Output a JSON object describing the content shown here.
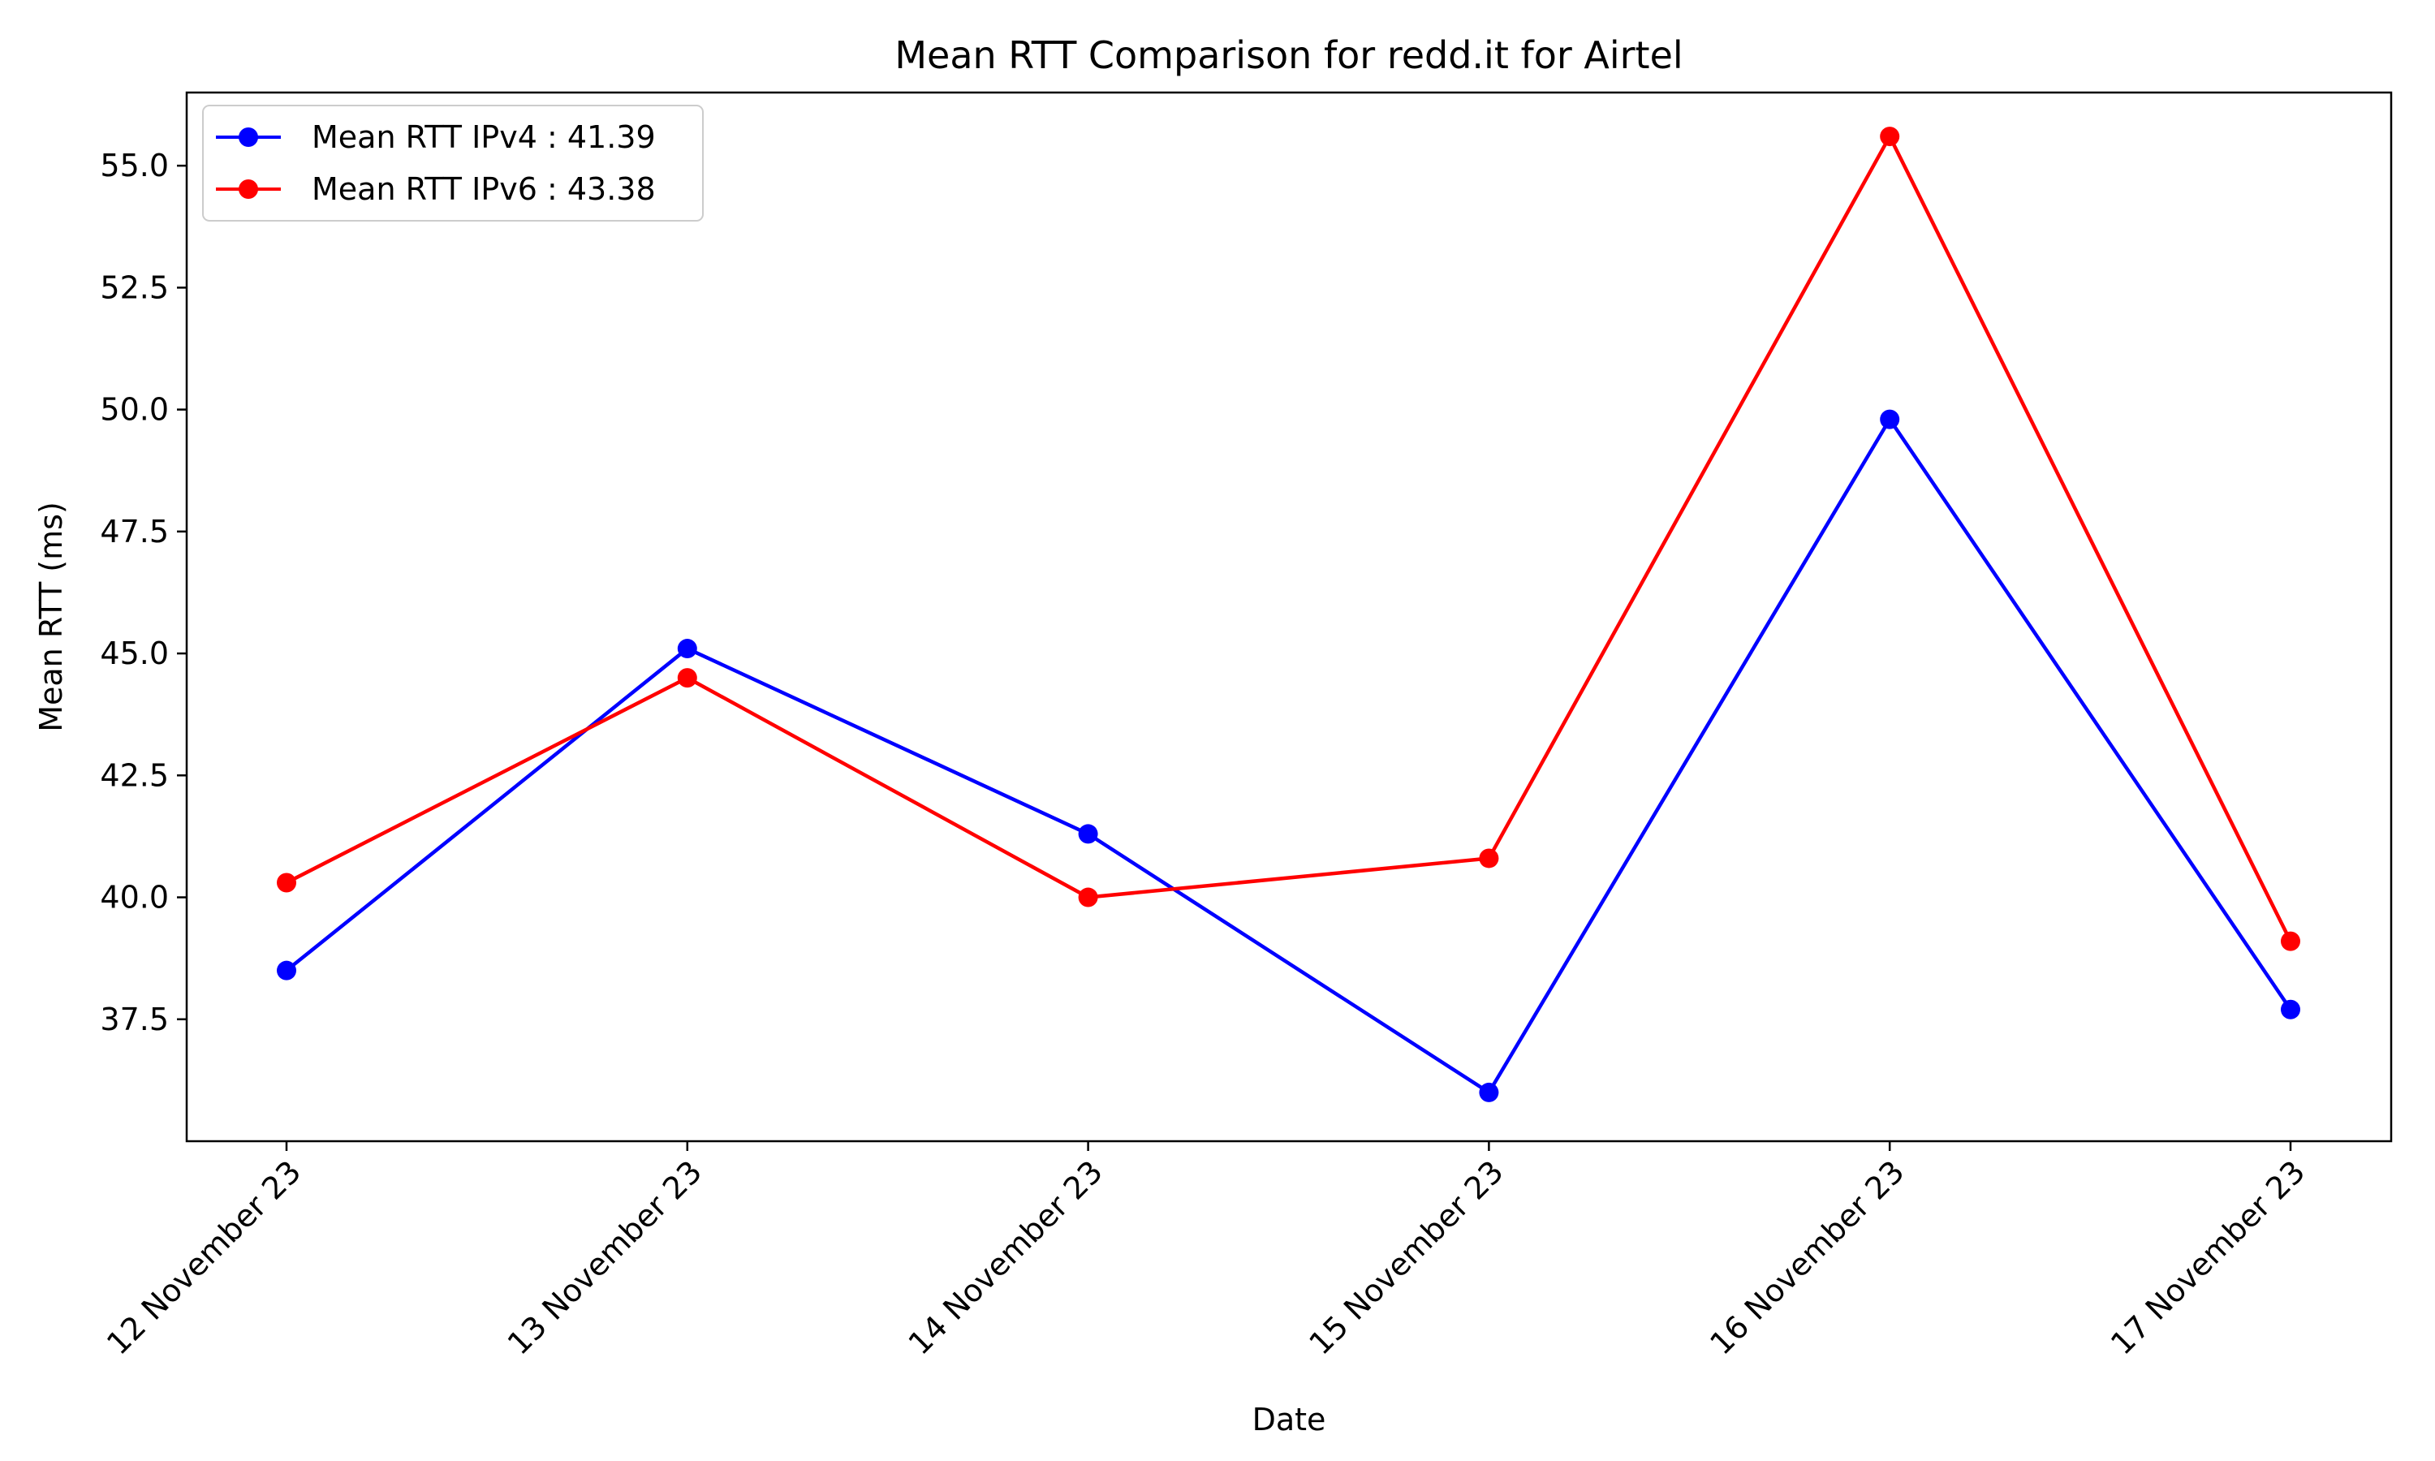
{
  "chart_data": {
    "type": "line",
    "title": "Mean RTT Comparison for redd.it for Airtel",
    "xlabel": "Date",
    "ylabel": "Mean RTT (ms)",
    "categories": [
      "12 November 23",
      "13 November 23",
      "14 November 23",
      "15 November 23",
      "16 November 23",
      "17 November 23"
    ],
    "yticks": [
      "37.5",
      "40.0",
      "42.5",
      "45.0",
      "47.5",
      "50.0",
      "52.5",
      "55.0"
    ],
    "ylim": [
      35.0,
      56.5
    ],
    "grid": false,
    "legend_position": "top-left",
    "series": [
      {
        "name": "Mean RTT IPv4 : 41.39",
        "color": "#0000ff",
        "values": [
          38.5,
          45.1,
          41.3,
          36.0,
          49.8,
          37.7
        ]
      },
      {
        "name": "Mean RTT IPv6 : 43.38",
        "color": "#ff0000",
        "values": [
          40.3,
          44.5,
          40.0,
          40.8,
          55.6,
          39.1
        ]
      }
    ]
  }
}
